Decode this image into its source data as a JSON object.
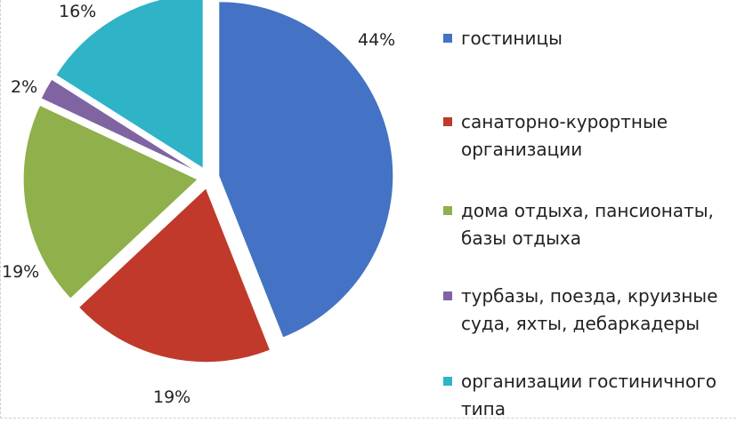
{
  "chart_data": {
    "type": "pie",
    "title": "",
    "slices": [
      {
        "label": "гостиницы",
        "value": 44,
        "value_label": "44%",
        "color": "#4472c4"
      },
      {
        "label": "санаторно-курортные организации",
        "value": 19,
        "value_label": "19%",
        "color": "#c0392b"
      },
      {
        "label": "дома отдыха, пансионаты, базы отдыха",
        "value": 19,
        "value_label": "19%",
        "color": "#8fb04a"
      },
      {
        "label": "турбазы, поезда, круизные суда, яхты, дебаркадеры",
        "value": 2,
        "value_label": "2%",
        "color": "#8064a2"
      },
      {
        "label": "организации гостиничного типа",
        "value": 16,
        "value_label": "16%",
        "color": "#2fb3c6"
      }
    ],
    "legend_position": "right",
    "exploded": true
  }
}
